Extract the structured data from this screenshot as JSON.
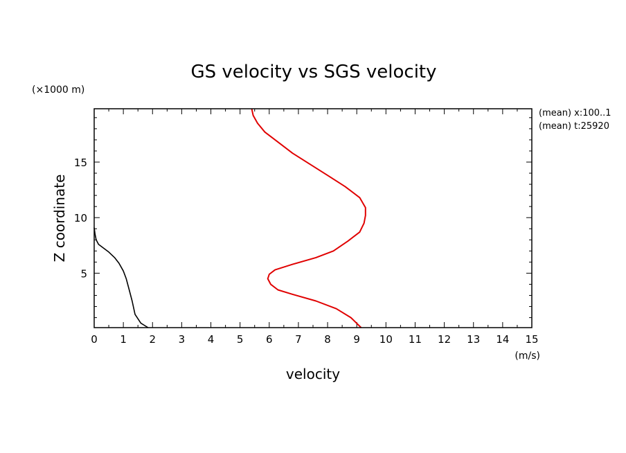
{
  "chart_data": {
    "type": "line",
    "title": "GS velocity vs SGS velocity",
    "xlabel": "velocity",
    "ylabel": "Z coordinate",
    "x_unit": "(m/s)",
    "y_unit": "(×1000 m)",
    "xlim": [
      0,
      15
    ],
    "ylim": [
      0.1,
      19.8
    ],
    "x_ticks": [
      "0",
      "1",
      "2",
      "3",
      "4",
      "5",
      "6",
      "7",
      "8",
      "9",
      "10",
      "11",
      "12",
      "13",
      "14",
      "15"
    ],
    "y_ticks": [
      "5",
      "10",
      "15"
    ],
    "annotations": [
      "(mean) x:100..1",
      "(mean) t:25920"
    ],
    "grid": false,
    "legend": "none",
    "series": [
      {
        "color": "#000000",
        "points": [
          [
            1.85,
            0.1
          ],
          [
            1.6,
            0.5
          ],
          [
            1.4,
            1.3
          ],
          [
            1.3,
            2.5
          ],
          [
            1.2,
            3.5
          ],
          [
            1.1,
            4.5
          ],
          [
            1.0,
            5.2
          ],
          [
            0.85,
            5.9
          ],
          [
            0.7,
            6.4
          ],
          [
            0.5,
            6.9
          ],
          [
            0.3,
            7.3
          ],
          [
            0.15,
            7.6
          ],
          [
            0.07,
            8.0
          ],
          [
            0.03,
            8.5
          ],
          [
            0.0,
            9.1
          ]
        ]
      },
      {
        "color": "#e00000",
        "points": [
          [
            9.15,
            0.1
          ],
          [
            8.8,
            1.0
          ],
          [
            8.3,
            1.8
          ],
          [
            7.6,
            2.5
          ],
          [
            6.8,
            3.1
          ],
          [
            6.3,
            3.5
          ],
          [
            6.05,
            4.0
          ],
          [
            5.95,
            4.5
          ],
          [
            6.0,
            4.9
          ],
          [
            6.2,
            5.3
          ],
          [
            6.8,
            5.8
          ],
          [
            7.6,
            6.4
          ],
          [
            8.2,
            7.0
          ],
          [
            8.7,
            7.9
          ],
          [
            9.1,
            8.7
          ],
          [
            9.25,
            9.5
          ],
          [
            9.3,
            10.2
          ],
          [
            9.3,
            10.9
          ],
          [
            9.1,
            11.8
          ],
          [
            8.6,
            12.8
          ],
          [
            8.0,
            13.8
          ],
          [
            7.4,
            14.8
          ],
          [
            6.8,
            15.8
          ],
          [
            6.3,
            16.8
          ],
          [
            5.85,
            17.7
          ],
          [
            5.6,
            18.5
          ],
          [
            5.45,
            19.2
          ],
          [
            5.4,
            19.8
          ]
        ]
      }
    ]
  }
}
